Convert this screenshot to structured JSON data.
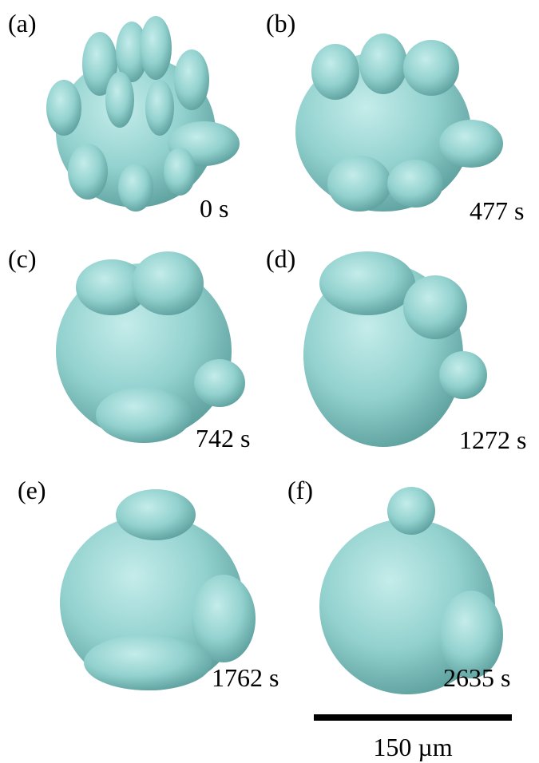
{
  "panels": [
    {
      "label": "(a)",
      "time": "0 s"
    },
    {
      "label": "(b)",
      "time": "477 s"
    },
    {
      "label": "(c)",
      "time": "742 s"
    },
    {
      "label": "(d)",
      "time": "1272 s"
    },
    {
      "label": "(e)",
      "time": "1762 s"
    },
    {
      "label": "(f)",
      "time": "2635 s"
    }
  ],
  "scale_bar": {
    "label": "150 µm"
  }
}
